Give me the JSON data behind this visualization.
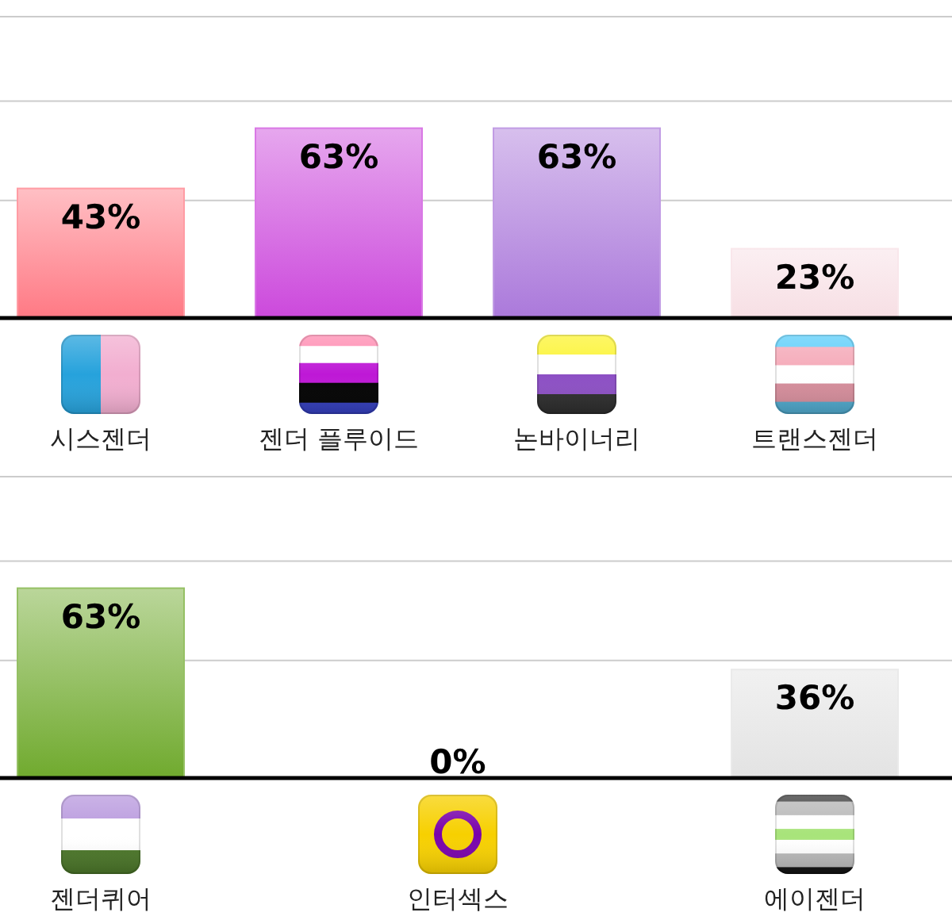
{
  "chart_data": [
    {
      "type": "bar",
      "categories": [
        "시스젠더",
        "젠더 플루이드",
        "논바이너리",
        "트랜스젠더"
      ],
      "values": [
        43,
        63,
        63,
        23
      ],
      "value_labels": [
        "43%",
        "63%",
        "63%",
        "23%"
      ],
      "colors": [
        "#ff9ca4",
        "#d978e5",
        "#c19ce4",
        "#f9e7eb"
      ],
      "ref_lines": [
        {
          "axis": "y",
          "value": 39,
          "color": "#cccccc"
        },
        {
          "axis": "y",
          "value": 72,
          "color": "#cccccc"
        },
        {
          "axis": "y",
          "value": 100,
          "color": "#cccccc"
        }
      ]
    },
    {
      "type": "bar",
      "categories": [
        "젠더퀴어",
        "인터섹스",
        "에이젠더"
      ],
      "values": [
        63,
        0,
        36
      ],
      "value_labels": [
        "63%",
        "0%",
        "36%"
      ],
      "colors": [
        "#95c064",
        null,
        "#eaeaea"
      ],
      "ref_lines": [
        {
          "axis": "y",
          "value": 39,
          "color": "#cccccc"
        },
        {
          "axis": "y",
          "value": 72,
          "color": "#cccccc"
        },
        {
          "axis": "y",
          "value": 100,
          "color": "#cccccc"
        }
      ]
    }
  ]
}
